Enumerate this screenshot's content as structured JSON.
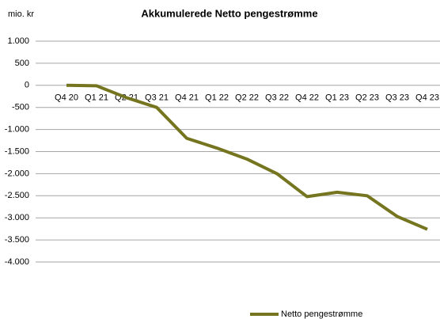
{
  "chart_data": {
    "type": "line",
    "title": "Akkumulerede Netto pengestrømme",
    "y_label": "mio. kr",
    "categories": [
      "Q4 20",
      "Q1 21",
      "Q2 21",
      "Q3 21",
      "Q4 21",
      "Q1 22",
      "Q2 22",
      "Q3 22",
      "Q4 22",
      "Q1 23",
      "Q2 23",
      "Q3 23",
      "Q4 23"
    ],
    "series": [
      {
        "name": "Netto pengestrømme",
        "color": "#757520",
        "values": [
          0,
          -10,
          -280,
          -500,
          -1200,
          -1420,
          -1670,
          -2000,
          -2520,
          -2420,
          -2500,
          -2970,
          -3260
        ]
      }
    ],
    "ylim": [
      -4000,
      1000
    ],
    "yticks": [
      {
        "value": 1000,
        "label": "1.000"
      },
      500,
      0,
      -500,
      {
        "value": -1000,
        "label": "-1.000"
      },
      {
        "value": -1500,
        "label": "-1.500"
      },
      {
        "value": -2000,
        "label": "-2.000"
      },
      {
        "value": -2500,
        "label": "-2.500"
      },
      {
        "value": -3000,
        "label": "-3.000"
      },
      {
        "value": -3500,
        "label": "-3.500"
      },
      {
        "value": -4000,
        "label": "-4.000"
      }
    ],
    "grid": true,
    "legend": "bottom"
  }
}
